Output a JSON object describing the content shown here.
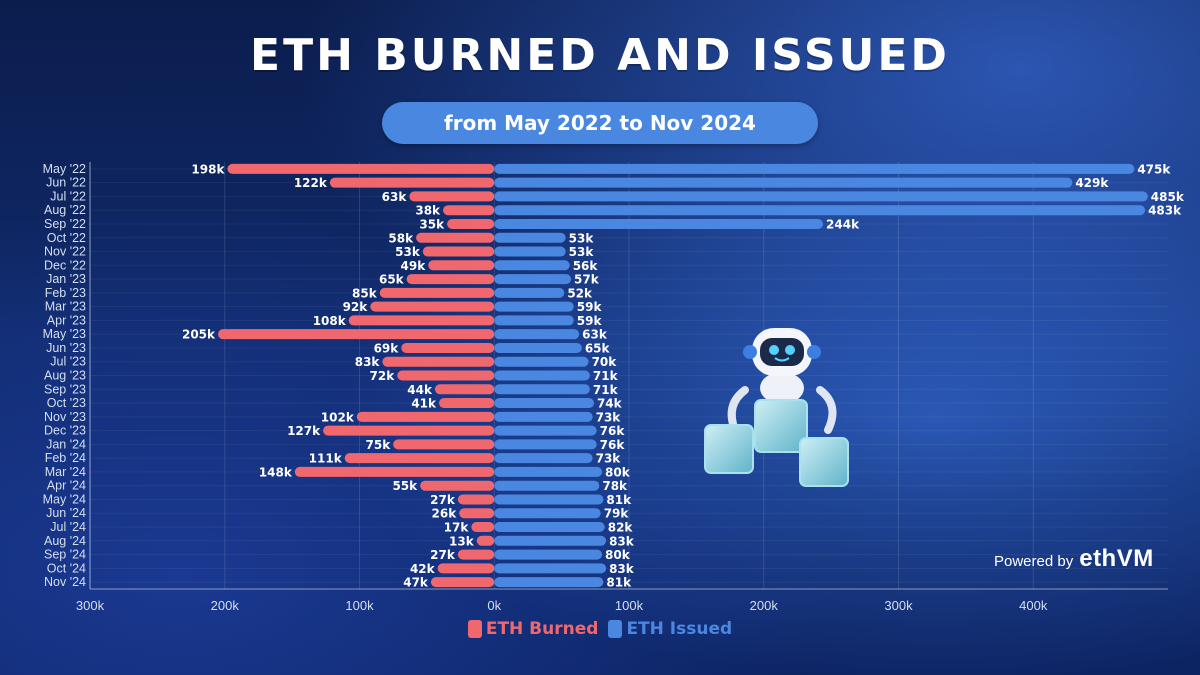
{
  "header": {
    "title": "ETH BURNED AND ISSUED",
    "subtitle": "from May 2022 to Nov 2024"
  },
  "branding": {
    "powered_by": "Powered by",
    "logo_text": "ethVM"
  },
  "colors": {
    "burned": "#f0686e",
    "issued": "#4a87e0",
    "text": "#ffffff",
    "axis_text": "#d6def0"
  },
  "chart_data": {
    "type": "bar",
    "orientation": "horizontal",
    "title": "ETH BURNED AND ISSUED",
    "subtitle": "from May 2022 to Nov 2024",
    "categories": [
      "May '22",
      "Jun '22",
      "Jul '22",
      "Aug '22",
      "Sep '22",
      "Oct '22",
      "Nov '22",
      "Dec '22",
      "Jan '23",
      "Feb '23",
      "Mar '23",
      "Apr '23",
      "May '23",
      "Jun '23",
      "Jul '23",
      "Aug '23",
      "Sep '23",
      "Oct '23",
      "Nov '23",
      "Dec '23",
      "Jan '24",
      "Feb '24",
      "Mar '24",
      "Apr '24",
      "May '24",
      "Jun '24",
      "Jul '24",
      "Aug '24",
      "Sep '24",
      "Oct '24",
      "Nov '24"
    ],
    "series": [
      {
        "name": "ETH Burned",
        "direction": "negative",
        "color": "#f0686e",
        "values": [
          198,
          122,
          63,
          38,
          35,
          58,
          53,
          49,
          65,
          85,
          92,
          108,
          205,
          69,
          83,
          72,
          44,
          41,
          102,
          127,
          75,
          111,
          148,
          55,
          27,
          26,
          17,
          13,
          27,
          42,
          47
        ]
      },
      {
        "name": "ETH Issued",
        "direction": "positive",
        "color": "#4a87e0",
        "values": [
          475,
          429,
          485,
          483,
          244,
          53,
          53,
          56,
          57,
          52,
          59,
          59,
          63,
          65,
          70,
          71,
          71,
          74,
          73,
          76,
          76,
          73,
          80,
          78,
          81,
          79,
          82,
          83,
          80,
          83,
          81
        ]
      }
    ],
    "value_label_suffix": "k",
    "x_ticks": [
      "300k",
      "200k",
      "100k",
      "0k",
      "100k",
      "200k",
      "300k",
      "400k"
    ],
    "xlim": [
      -300,
      500
    ],
    "units": "thousands of ETH",
    "grid": true,
    "legend": {
      "position": "bottom",
      "items": [
        "ETH Burned",
        "ETH Issued"
      ]
    }
  }
}
